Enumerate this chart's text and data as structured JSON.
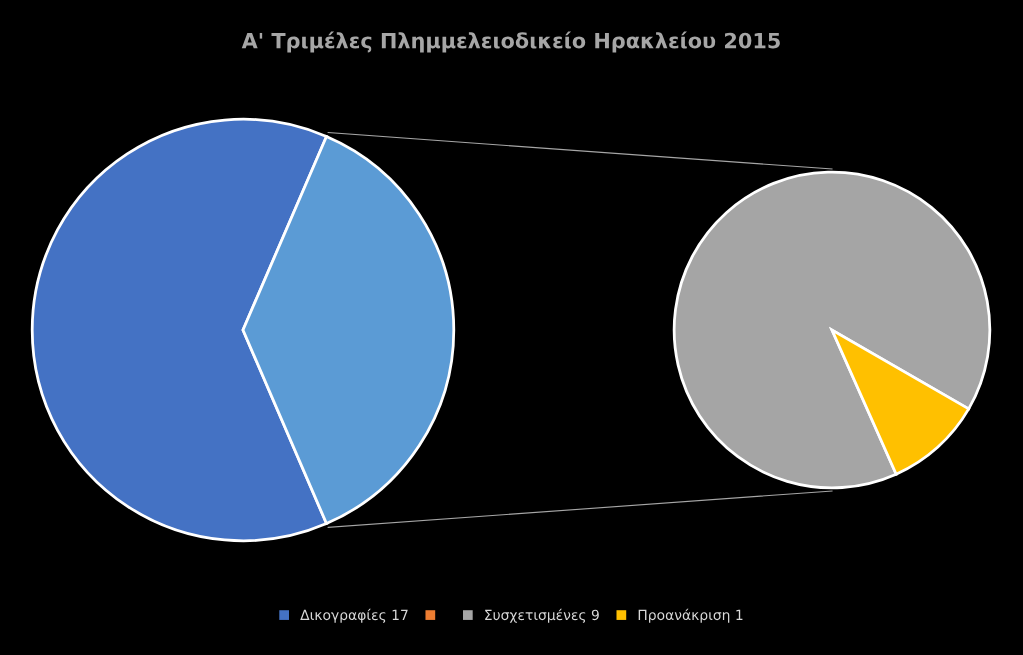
{
  "chart_data": [
    {
      "type": "pie",
      "title": "Α' Τριμέλες Πλημμελειοδικείο Ηρακλείου 2015",
      "categories": [
        "Δικογραφίες 17",
        null,
        null
      ],
      "values": [
        17,
        0,
        10
      ],
      "colors": [
        "#4472c4",
        "#ed7d31",
        "#5b9bd5"
      ],
      "legend": "bottom"
    },
    {
      "type": "pie",
      "categories": [
        "Συσχετισμένες 9",
        "Προανάκριση 1"
      ],
      "values": [
        9,
        1
      ],
      "colors": [
        "#a5a5a5",
        "#ffc000"
      ],
      "legend": "bottom"
    }
  ]
}
